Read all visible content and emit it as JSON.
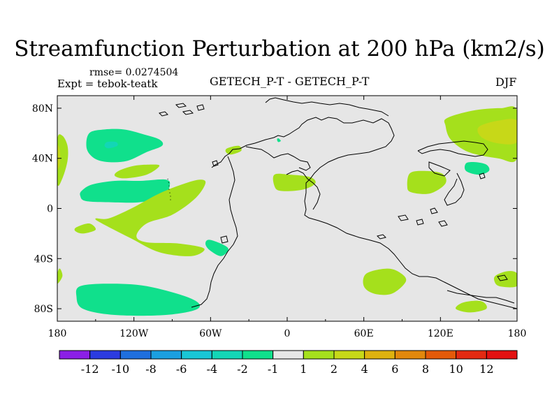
{
  "title": "Streamfunction Perturbation at 200 hPa (km2/s)",
  "rmse_label": "rmse= 0.0274504",
  "expt_label": "Expt = tebok-teatk",
  "center_label": "GETECH_P-T - GETECH_P-T",
  "season_label": "DJF",
  "chart_data": {
    "type": "filled-contour-map",
    "projection": "cylindrical-equidistant",
    "lon_range": [
      -180,
      180
    ],
    "lat_range": [
      -90,
      90
    ],
    "x_ticks": [
      {
        "value": -180,
        "label": "180"
      },
      {
        "value": -120,
        "label": "120W"
      },
      {
        "value": -60,
        "label": "60W"
      },
      {
        "value": 0,
        "label": "0"
      },
      {
        "value": 60,
        "label": "60E"
      },
      {
        "value": 120,
        "label": "120E"
      },
      {
        "value": 180,
        "label": "180"
      }
    ],
    "y_ticks": [
      {
        "value": 80,
        "label": "80N"
      },
      {
        "value": 40,
        "label": "40N"
      },
      {
        "value": 0,
        "label": "0"
      },
      {
        "value": -40,
        "label": "40S"
      },
      {
        "value": -80,
        "label": "80S"
      }
    ],
    "colorbar": {
      "boundaries": [
        "-12",
        "-10",
        "-8",
        "-6",
        "-4",
        "-2",
        "-1",
        "1",
        "2",
        "4",
        "6",
        "8",
        "10",
        "12"
      ],
      "colors": [
        "#8b1fe6",
        "#2b3be0",
        "#1f6fde",
        "#1b9fe0",
        "#19c6d6",
        "#13d6b6",
        "#10e08c",
        "#e6e6e6",
        "#a5e01c",
        "#c7d818",
        "#deb20f",
        "#e2880c",
        "#e45a09",
        "#e32a12",
        "#e31111"
      ]
    },
    "regions": [
      {
        "level": "1 to 2",
        "color": "#a5e01c",
        "points": [
          [
            -180,
            55
          ],
          [
            -176,
            58
          ],
          [
            -172,
            50
          ],
          [
            -172,
            38
          ],
          [
            -176,
            24
          ],
          [
            -180,
            20
          ]
        ]
      },
      {
        "level": "2 to 4",
        "color": "#c7d818",
        "points": [
          [
            -180,
            50
          ],
          [
            -178,
            46
          ],
          [
            -178,
            36
          ],
          [
            -180,
            32
          ]
        ]
      },
      {
        "level": "1 to 2",
        "color": "#a5e01c",
        "points": [
          [
            -180,
            -52
          ],
          [
            -178,
            -48
          ],
          [
            -176,
            -54
          ],
          [
            -180,
            -60
          ]
        ]
      },
      {
        "level": "-2 to -1",
        "color": "#10e08c",
        "points": [
          [
            -155,
            60
          ],
          [
            -143,
            63
          ],
          [
            -128,
            63
          ],
          [
            -112,
            59
          ],
          [
            -100,
            55
          ],
          [
            -98,
            50
          ],
          [
            -110,
            45
          ],
          [
            -125,
            38
          ],
          [
            -140,
            37
          ],
          [
            -151,
            40
          ],
          [
            -157,
            48
          ]
        ]
      },
      {
        "level": "-4 to -2",
        "color": "#13d6b6",
        "points": [
          [
            -141,
            53
          ],
          [
            -134,
            53
          ],
          [
            -133,
            50
          ],
          [
            -140,
            48
          ],
          [
            -143,
            50
          ]
        ]
      },
      {
        "level": "1 to 2",
        "color": "#a5e01c",
        "points": [
          [
            -132,
            30
          ],
          [
            -120,
            34
          ],
          [
            -108,
            35
          ],
          [
            -100,
            34
          ],
          [
            -110,
            27
          ],
          [
            -127,
            24
          ],
          [
            -135,
            26
          ]
        ]
      },
      {
        "level": "-2 to -1",
        "color": "#10e08c",
        "points": [
          [
            -161,
            14
          ],
          [
            -153,
            19
          ],
          [
            -135,
            22
          ],
          [
            -115,
            22
          ],
          [
            -95,
            23
          ],
          [
            -92,
            18
          ],
          [
            -97,
            10
          ],
          [
            -115,
            5
          ],
          [
            -140,
            5
          ],
          [
            -158,
            6
          ],
          [
            -162,
            10
          ]
        ]
      },
      {
        "level": "1 to 2",
        "color": "#a5e01c",
        "points": [
          [
            -150,
            -8
          ],
          [
            -145,
            -12
          ],
          [
            -122,
            -24
          ],
          [
            -100,
            -35
          ],
          [
            -75,
            -38
          ],
          [
            -65,
            -32
          ],
          [
            -85,
            -28
          ],
          [
            -110,
            -27
          ],
          [
            -118,
            -22
          ],
          [
            -110,
            -12
          ],
          [
            -90,
            -5
          ],
          [
            -72,
            8
          ],
          [
            -64,
            20
          ],
          [
            -68,
            23
          ],
          [
            -80,
            20
          ],
          [
            -100,
            12
          ],
          [
            -122,
            0
          ],
          [
            -140,
            -8
          ]
        ]
      },
      {
        "level": "1 to 2",
        "color": "#a5e01c",
        "points": [
          [
            -165,
            -15
          ],
          [
            -155,
            -12
          ],
          [
            -150,
            -17
          ],
          [
            -160,
            -20
          ],
          [
            -166,
            -18
          ]
        ]
      },
      {
        "level": "-2 to -1",
        "color": "#10e08c",
        "points": [
          [
            -61,
            -25
          ],
          [
            -50,
            -29
          ],
          [
            -46,
            -33
          ],
          [
            -52,
            -38
          ],
          [
            -61,
            -33
          ],
          [
            -64,
            -28
          ]
        ]
      },
      {
        "level": "-2 to -1",
        "color": "#10e08c",
        "points": [
          [
            -162,
            -62
          ],
          [
            -140,
            -60
          ],
          [
            -110,
            -62
          ],
          [
            -75,
            -72
          ],
          [
            -70,
            -80
          ],
          [
            -95,
            -85
          ],
          [
            -135,
            -85
          ],
          [
            -160,
            -80
          ],
          [
            -165,
            -70
          ]
        ]
      },
      {
        "level": "1 to 2",
        "color": "#a5e01c",
        "points": [
          [
            -47,
            48
          ],
          [
            -38,
            50
          ],
          [
            -36,
            46
          ],
          [
            -44,
            43
          ],
          [
            -48,
            45
          ]
        ]
      },
      {
        "level": "1 to 2",
        "color": "#a5e01c",
        "points": [
          [
            -10,
            27
          ],
          [
            2,
            27
          ],
          [
            18,
            25
          ],
          [
            22,
            20
          ],
          [
            12,
            15
          ],
          [
            -5,
            14
          ],
          [
            -10,
            18
          ]
        ]
      },
      {
        "level": "1 to 2",
        "color": "#a5e01c",
        "points": [
          [
            96,
            28
          ],
          [
            106,
            30
          ],
          [
            121,
            28
          ],
          [
            124,
            20
          ],
          [
            112,
            12
          ],
          [
            97,
            13
          ],
          [
            94,
            18
          ]
        ]
      },
      {
        "level": "1 to 2",
        "color": "#a5e01c",
        "points": [
          [
            125,
            72
          ],
          [
            145,
            78
          ],
          [
            167,
            80
          ],
          [
            180,
            78
          ],
          [
            180,
            40
          ],
          [
            165,
            40
          ],
          [
            142,
            45
          ],
          [
            128,
            55
          ],
          [
            124,
            66
          ]
        ]
      },
      {
        "level": "2 to 4",
        "color": "#c7d818",
        "points": [
          [
            150,
            65
          ],
          [
            165,
            70
          ],
          [
            180,
            70
          ],
          [
            180,
            53
          ],
          [
            165,
            52
          ],
          [
            152,
            57
          ]
        ]
      },
      {
        "level": "-2 to -1",
        "color": "#10e08c",
        "points": [
          [
            140,
            36
          ],
          [
            147,
            37
          ],
          [
            156,
            35
          ],
          [
            158,
            30
          ],
          [
            150,
            27
          ],
          [
            140,
            30
          ]
        ]
      },
      {
        "level": "1 to 2",
        "color": "#a5e01c",
        "points": [
          [
            62,
            -52
          ],
          [
            78,
            -48
          ],
          [
            88,
            -51
          ],
          [
            93,
            -58
          ],
          [
            82,
            -68
          ],
          [
            68,
            -68
          ],
          [
            60,
            -62
          ]
        ]
      },
      {
        "level": "1 to 2",
        "color": "#a5e01c",
        "points": [
          [
            138,
            -75
          ],
          [
            152,
            -74
          ],
          [
            156,
            -80
          ],
          [
            143,
            -83
          ],
          [
            132,
            -80
          ]
        ]
      },
      {
        "level": "1 to 2",
        "color": "#a5e01c",
        "points": [
          [
            164,
            -53
          ],
          [
            173,
            -50
          ],
          [
            180,
            -52
          ],
          [
            180,
            -62
          ],
          [
            166,
            -62
          ],
          [
            162,
            -57
          ]
        ]
      },
      {
        "level": "-2 to -1",
        "color": "#10e08c",
        "points": [
          [
            -8,
            55
          ],
          [
            -7,
            56
          ],
          [
            -5,
            54
          ],
          [
            -7,
            53
          ]
        ]
      }
    ]
  }
}
